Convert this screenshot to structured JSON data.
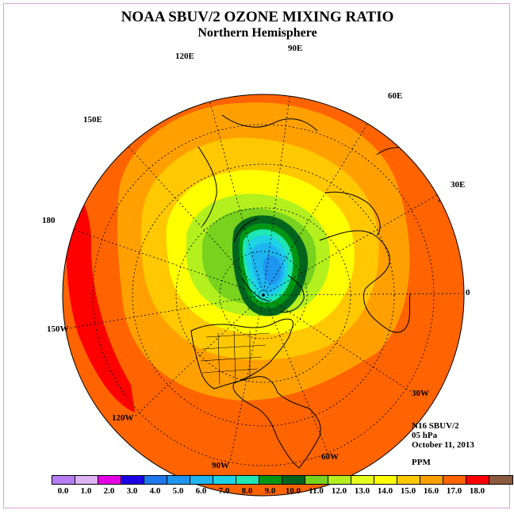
{
  "title": "NOAA SBUV/2 OZONE MIXING RATIO",
  "subtitle": "Northern Hemisphere",
  "info": {
    "satellite": "N16 SBUV/2",
    "level": "05 hPa",
    "date": "October 11, 2013",
    "units": "PPM"
  },
  "longitude_labels": [
    {
      "id": "lon-90e",
      "text": "90E"
    },
    {
      "id": "lon-60e",
      "text": "60E"
    },
    {
      "id": "lon-30e",
      "text": "30E"
    },
    {
      "id": "lon-0",
      "text": "0"
    },
    {
      "id": "lon-30w",
      "text": "30W"
    },
    {
      "id": "lon-60w",
      "text": "60W"
    },
    {
      "id": "lon-90w",
      "text": "90W"
    },
    {
      "id": "lon-120w",
      "text": "120W"
    },
    {
      "id": "lon-150w",
      "text": "150W"
    },
    {
      "id": "lon-180",
      "text": "180"
    },
    {
      "id": "lon-150e",
      "text": "150E"
    },
    {
      "id": "lon-120e",
      "text": "120E"
    }
  ],
  "colorbar": {
    "colors": [
      "#b57ef5",
      "#dcb4f5",
      "#e600e6",
      "#1e00e6",
      "#1e78f0",
      "#1e96f0",
      "#1eb4f0",
      "#1ed2e6",
      "#1ee6b4",
      "#009614",
      "#00641e",
      "#78d21e",
      "#b4f01e",
      "#e6ff1e",
      "#ffff00",
      "#ffc800",
      "#ffa000",
      "#ff6400",
      "#ff0000",
      "#8c5a3c"
    ],
    "ticks": [
      "0.0",
      "1.0",
      "2.0",
      "3.0",
      "4.0",
      "5.0",
      "6.0",
      "7.0",
      "8.0",
      "9.0",
      "10.0",
      "11.0",
      "12.0",
      "13.0",
      "14.0",
      "15.0",
      "16.0",
      "17.0",
      "18.0"
    ]
  },
  "field_colors": {
    "outer": "#ff6400",
    "red_band": "#ff0000",
    "orange_light": "#ffa000",
    "gold": "#ffc800",
    "yellow": "#ffff00",
    "lime": "#b4f01e",
    "green_light": "#78d21e",
    "dark_green": "#00641e",
    "green": "#009614",
    "cyan_green": "#1ee6b4",
    "cyan": "#1ed2e6",
    "light_blue": "#1eb4f0",
    "blue": "#1e96f0"
  }
}
